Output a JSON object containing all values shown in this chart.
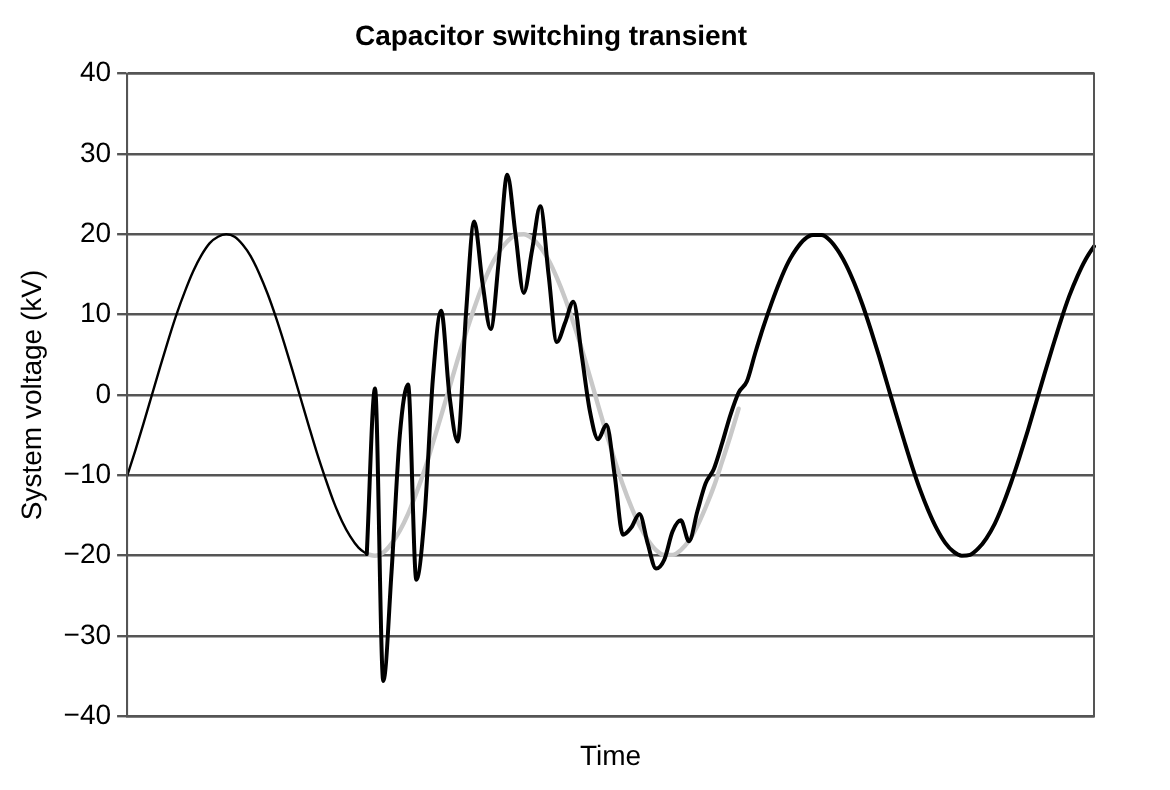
{
  "chart_data": {
    "type": "line",
    "title": "Capacitor switching transient",
    "xlabel": "Time",
    "ylabel": "System voltage (kV)",
    "categories": [
      null,
      null,
      null,
      null,
      null,
      null,
      null,
      null,
      null,
      null,
      null,
      null,
      null,
      null,
      null,
      null,
      null,
      null,
      null,
      null,
      null,
      null,
      null,
      null,
      null,
      null,
      null,
      null,
      null,
      null,
      null,
      null,
      null,
      null,
      null,
      null,
      null,
      null,
      null,
      null,
      null,
      null,
      null,
      null,
      null,
      null,
      null,
      null,
      null,
      null,
      null,
      null,
      null,
      null,
      null,
      null,
      null,
      null,
      null,
      null,
      null,
      null,
      null,
      null,
      null,
      null,
      null,
      null,
      null,
      null,
      null,
      null,
      null,
      null,
      null,
      null,
      null,
      null,
      null,
      null,
      null,
      null,
      null,
      null,
      null,
      null,
      null,
      null,
      null,
      null,
      null,
      null,
      null,
      null,
      null,
      null,
      null,
      null,
      null,
      null,
      null,
      null,
      null,
      null,
      null,
      null,
      null,
      null,
      null,
      null,
      null,
      null,
      null,
      null,
      null,
      null,
      null,
      null
    ],
    "series": [
      {
        "color": "#c8c8c8",
        "values": [
          null,
          null,
          null,
          null,
          null,
          null,
          null,
          null,
          null,
          null,
          null,
          null,
          null,
          null,
          null,
          null,
          null,
          null,
          null,
          null,
          null,
          null,
          null,
          null,
          null,
          null,
          null,
          null,
          null,
          -19.8,
          -20.0,
          -19.6,
          -18.5,
          -16.9,
          -14.8,
          -12.2,
          -9.3,
          -6.0,
          -2.6,
          0.9,
          4.4,
          7.7,
          10.8,
          13.6,
          16.0,
          17.8,
          19.1,
          19.9,
          20.0,
          19.5,
          18.4,
          16.8,
          14.6,
          12.0,
          9.0,
          5.8,
          2.3,
          -1.3,
          -4.8,
          -8.1,
          -11.2,
          -13.9,
          -16.2,
          -18.0,
          -19.3,
          -19.9,
          -19.9,
          -19.3,
          -18.1,
          -16.3,
          -14.0,
          -11.4,
          -8.3,
          -5.1,
          -1.7,
          null,
          null,
          null,
          null,
          null,
          null,
          null,
          null,
          null,
          null,
          null,
          null,
          null,
          null,
          null,
          null,
          null,
          null,
          null,
          null,
          null,
          null,
          null,
          null,
          null,
          null,
          null,
          null,
          null,
          null,
          null,
          null,
          null,
          null,
          null,
          null,
          null,
          null,
          null,
          null,
          null,
          null,
          null
        ]
      },
      {
        "color": "#000000",
        "values": [
          -10.1,
          -6.9,
          -3.5,
          0,
          3.5,
          6.9,
          10.1,
          12.9,
          15.4,
          17.4,
          18.9,
          19.7,
          20.0,
          19.7,
          18.7,
          17.2,
          15.1,
          12.6,
          9.7,
          6.5,
          3.1,
          -0.4,
          -3.9,
          -7.3,
          -10.4,
          -13.3,
          -15.7,
          -17.6,
          -19.0,
          -19.8,
          null,
          null,
          null,
          null,
          null,
          null,
          null,
          null,
          null,
          null,
          null,
          null,
          null,
          null,
          null,
          null,
          null,
          null,
          null,
          null,
          null,
          null,
          null,
          null,
          null,
          null,
          null,
          null,
          null,
          null,
          null,
          null,
          null,
          null,
          null,
          null,
          null,
          null,
          null,
          null,
          null,
          null,
          null,
          null,
          null,
          null,
          null,
          null,
          null,
          null,
          null,
          null,
          null,
          null,
          null,
          null,
          null,
          null,
          null,
          null,
          null,
          null,
          null,
          null,
          null,
          null,
          null,
          null,
          null,
          null,
          null,
          null,
          null,
          null,
          null,
          null,
          null,
          null,
          null,
          null,
          null,
          null,
          null,
          null,
          null,
          null,
          null,
          null
        ]
      },
      {
        "color": "#000000",
        "values": [
          null,
          null,
          null,
          null,
          null,
          null,
          null,
          null,
          null,
          null,
          null,
          null,
          null,
          null,
          null,
          null,
          null,
          null,
          null,
          null,
          null,
          null,
          null,
          null,
          null,
          null,
          null,
          null,
          null,
          -19.8,
          0.8,
          -35.6,
          -22,
          -5,
          1.3,
          -23,
          -15,
          2,
          10.5,
          0,
          -5.8,
          10,
          21.6,
          14,
          8.2,
          17,
          27.4,
          20,
          12.7,
          18,
          23.5,
          15,
          6.6,
          9,
          11.6,
          5,
          -2,
          -5.5,
          -3.7,
          -10,
          -17.4,
          -16.5,
          -14.8,
          -18.5,
          -21.6,
          -20.5,
          -17,
          -15.6,
          -18.2,
          -14.5,
          -11,
          -9.2,
          -6,
          -2.5,
          0.3,
          1.7,
          5.2,
          8.5,
          11.5,
          14.2,
          16.5,
          18.2,
          19.4,
          19.9,
          19.9,
          19.3,
          18.0,
          16.2,
          13.9,
          11.2,
          8.1,
          4.8,
          1.3,
          -2.2,
          -5.6,
          -8.9,
          -11.9,
          -14.5,
          -16.7,
          -18.4,
          -19.5,
          -20.0,
          -19.9,
          -19.1,
          -17.8,
          -16.0,
          -13.6,
          -10.8,
          -7.7,
          -4.4,
          -0.9,
          2.6,
          6.0,
          9.3,
          12.3,
          14.8,
          16.9,
          18.5
        ]
      }
    ],
    "ylim": [
      -40,
      40
    ],
    "yticks": [
      {
        "value": -40,
        "label": "−40"
      },
      {
        "value": -30,
        "label": "−30"
      },
      {
        "value": -20,
        "label": "−20"
      },
      {
        "value": -10,
        "label": "−10"
      },
      0,
      10,
      20,
      30,
      40
    ],
    "grid": "y",
    "legend": false,
    "tick_labels": "y",
    "marker": "none",
    "line_style": "solid"
  }
}
